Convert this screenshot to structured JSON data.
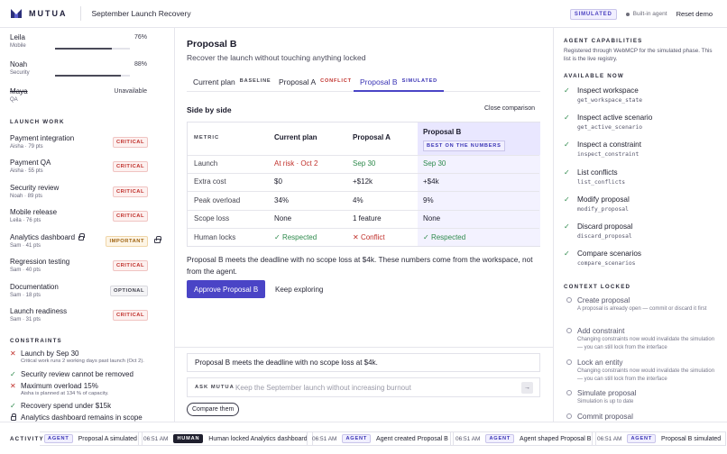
{
  "header": {
    "brand": "MUTUA",
    "workspace_title": "September Launch Recovery",
    "simulated_badge": "SIMULATED",
    "builtin_agent": "Built-in agent",
    "reset_label": "Reset demo"
  },
  "team": [
    {
      "name": "Leila",
      "role": "Mobile",
      "load": "76%",
      "load_fraction": 0.76
    },
    {
      "name": "Noah",
      "role": "Security",
      "load": "88%",
      "load_fraction": 0.88
    },
    {
      "name": "Maya",
      "role": "QA",
      "status": "Unavailable"
    }
  ],
  "launch_work": {
    "heading": "LAUNCH WORK",
    "items": [
      {
        "title": "Payment integration",
        "meta": "Aisha · 79 pts",
        "tag": "CRITICAL"
      },
      {
        "title": "Payment QA",
        "meta": "Aisha · 55 pts",
        "tag": "CRITICAL"
      },
      {
        "title": "Security review",
        "meta": "Noah · 89 pts",
        "tag": "CRITICAL"
      },
      {
        "title": "Mobile release",
        "meta": "Leila · 76 pts",
        "tag": "CRITICAL"
      },
      {
        "title": "Analytics dashboard",
        "meta": "Sam · 41 pts",
        "tag": "IMPORTANT",
        "locked": true
      },
      {
        "title": "Regression testing",
        "meta": "Sam · 40 pts",
        "tag": "CRITICAL"
      },
      {
        "title": "Documentation",
        "meta": "Sam · 18 pts",
        "tag": "OPTIONAL"
      },
      {
        "title": "Launch readiness",
        "meta": "Sam · 31 pts",
        "tag": "CRITICAL"
      }
    ]
  },
  "constraints": {
    "heading": "CONSTRAINTS",
    "items": [
      {
        "title": "Launch by Sep 30",
        "detail": "Critical work runs 2 working days past launch (Oct 2).",
        "status": "violated"
      },
      {
        "title": "Security review cannot be removed",
        "status": "met"
      },
      {
        "title": "Maximum overload 15%",
        "detail": "Aisha is planned at 134 % of capacity.",
        "status": "violated"
      },
      {
        "title": "Recovery spend under $15k",
        "status": "met"
      },
      {
        "title": "Analytics dashboard remains in scope",
        "status": "locked"
      }
    ]
  },
  "proposal": {
    "title": "Proposal B",
    "subtitle": "Recover the launch without touching anything locked",
    "tabs": [
      {
        "label": "Current plan",
        "tag": "BASELINE"
      },
      {
        "label": "Proposal A",
        "tag": "CONFLICT"
      },
      {
        "label": "Proposal B",
        "tag": "SIMULATED"
      }
    ],
    "side_by_side": "Side by side",
    "close_comparison": "Close comparison",
    "table": {
      "headers": [
        "METRIC",
        "Current plan",
        "Proposal A",
        "Proposal B"
      ],
      "best_label": "BEST ON THE NUMBERS",
      "rows": [
        {
          "metric": "Launch",
          "current": "At risk · Oct 2",
          "a": "Sep 30",
          "b": "Sep 30"
        },
        {
          "metric": "Extra cost",
          "current": "$0",
          "a": "+$12k",
          "b": "+$4k"
        },
        {
          "metric": "Peak overload",
          "current": "34%",
          "a": "4%",
          "b": "9%"
        },
        {
          "metric": "Scope loss",
          "current": "None",
          "a": "1 feature",
          "b": "None"
        },
        {
          "metric": "Human locks",
          "current": "Respected",
          "a": "Conflict",
          "b": "Respected"
        }
      ]
    },
    "description": "Proposal B meets the deadline with no scope loss at $4k. These numbers come from the workspace, not from the agent.",
    "approve_label": "Approve Proposal B",
    "keep_label": "Keep exploring"
  },
  "chat": {
    "message": "Proposal B meets the deadline with no scope loss at $4k.",
    "ask_label": "ASK MUTUA",
    "placeholder": "Keep the September launch without increasing burnout",
    "send_icon": "arrow-right-icon",
    "chip": "Compare them"
  },
  "agent_panel": {
    "heading": "AGENT CAPABILITIES",
    "note": "Registered through WebMCP for the simulated phase. This list is the live registry.",
    "available_heading": "AVAILABLE NOW",
    "available": [
      {
        "name": "Inspect workspace",
        "code": "get_workspace_state"
      },
      {
        "name": "Inspect active scenario",
        "code": "get_active_scenario"
      },
      {
        "name": "Inspect a constraint",
        "code": "inspect_constraint"
      },
      {
        "name": "List conflicts",
        "code": "list_conflicts"
      },
      {
        "name": "Modify proposal",
        "code": "modify_proposal"
      },
      {
        "name": "Discard proposal",
        "code": "discard_proposal"
      },
      {
        "name": "Compare scenarios",
        "code": "compare_scenarios"
      }
    ],
    "locked_heading": "CONTEXT LOCKED",
    "locked": [
      {
        "name": "Create proposal",
        "detail": "A proposal is already open — commit or discard it first"
      },
      {
        "name": "Add constraint",
        "detail": "Changing constraints now would invalidate the simulation — you can still lock from the interface"
      },
      {
        "name": "Lock an entity",
        "detail": "Changing constraints now would invalidate the simulation — you can still lock from the interface"
      },
      {
        "name": "Simulate proposal",
        "detail": "Simulation is up to date"
      },
      {
        "name": "Commit proposal",
        "detail": ""
      }
    ]
  },
  "activity": {
    "label": "ACTIVITY",
    "items": [
      {
        "time": "",
        "who": "AGENT",
        "text": "Proposal A simulated"
      },
      {
        "time": "06:51 AM",
        "who": "HUMAN",
        "text": "Human locked Analytics dashboard"
      },
      {
        "time": "06:51 AM",
        "who": "AGENT",
        "text": "Agent created Proposal B"
      },
      {
        "time": "06:51 AM",
        "who": "AGENT",
        "text": "Agent shaped Proposal B"
      },
      {
        "time": "06:51 AM",
        "who": "AGENT",
        "text": "Proposal B simulated"
      }
    ]
  },
  "colors": {
    "accent": "#4a44c6",
    "critical": "#c0302b",
    "success": "#2e8a4c",
    "important": "#a06412"
  }
}
